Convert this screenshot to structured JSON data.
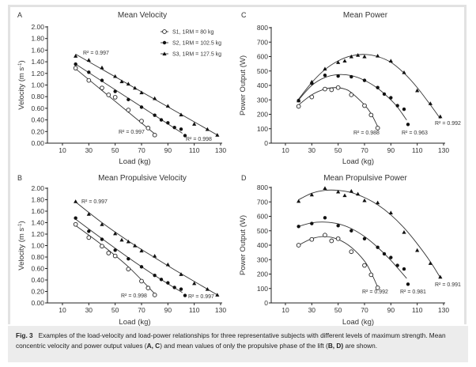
{
  "caption": {
    "label": "Fig. 3",
    "text_1": "Examples of the load-velocity and load-power relationships for three representative subjects with different levels of maximum strength. Mean concentric velocity and power output values (",
    "bold_ac": "A, C",
    "text_2": ") and mean values of only the propulsive phase of the lift (",
    "bold_bd": "B, D)",
    "text_3": " are shown."
  },
  "legend": [
    {
      "name": "S1, 1RM = 80 kg",
      "marker": "open-circle"
    },
    {
      "name": "S2, 1RM = 102.5 kg",
      "marker": "filled-circle"
    },
    {
      "name": "S3, 1RM = 127.5 kg",
      "marker": "filled-triangle"
    }
  ],
  "chart_data": [
    {
      "panel": "A",
      "type": "scatter",
      "title": "Mean Velocity",
      "xlabel": "Load (kg)",
      "ylabel": "Velocity (m s-1)",
      "xticks": [
        10,
        30,
        50,
        70,
        90,
        110,
        130
      ],
      "yticks": [
        "0.00",
        "0.20",
        "0.40",
        "0.60",
        "0.80",
        "1.00",
        "1.20",
        "1.40",
        "1.60",
        "1.80",
        "2.00"
      ],
      "xlim": [
        0,
        130
      ],
      "ylim": [
        0,
        2.0
      ],
      "fit": "linear",
      "legend_position": "top-right",
      "series": [
        {
          "name": "S1, 1RM = 80 kg",
          "marker": "open-circle",
          "r2": "R² = 0.997",
          "x": [
            20,
            30,
            40,
            45,
            50,
            60,
            70,
            75,
            80
          ],
          "y": [
            1.29,
            1.08,
            0.95,
            0.83,
            0.79,
            0.57,
            0.38,
            0.26,
            0.14
          ],
          "fit_line": [
            [
              20,
              1.28
            ],
            [
              80,
              0.16
            ]
          ]
        },
        {
          "name": "S2, 1RM = 102.5 kg",
          "marker": "filled-circle",
          "r2": "R² = 0.998",
          "x": [
            20,
            30,
            40,
            50,
            60,
            70,
            80,
            85,
            90,
            95,
            100,
            103
          ],
          "y": [
            1.36,
            1.22,
            1.08,
            0.89,
            0.75,
            0.62,
            0.48,
            0.4,
            0.35,
            0.27,
            0.24,
            0.13
          ],
          "fit_line": [
            [
              20,
              1.36
            ],
            [
              101,
              0.17
            ]
          ]
        },
        {
          "name": "S3, 1RM = 127.5 kg",
          "marker": "filled-triangle",
          "r2": "R² = 0.997",
          "x": [
            20,
            30,
            40,
            50,
            55,
            60,
            65,
            70,
            80,
            90,
            100,
            110,
            120,
            127.5
          ],
          "y": [
            1.5,
            1.43,
            1.3,
            1.15,
            1.06,
            1.02,
            0.95,
            0.87,
            0.77,
            0.64,
            0.49,
            0.33,
            0.24,
            0.14
          ],
          "fit_line": [
            [
              20,
              1.53
            ],
            [
              127.5,
              0.14
            ]
          ]
        }
      ]
    },
    {
      "panel": "C",
      "type": "scatter",
      "title": "Mean Power",
      "xlabel": "Load (kg)",
      "ylabel": "Power Output (W)",
      "xticks": [
        10,
        30,
        50,
        70,
        90,
        110,
        130
      ],
      "yticks": [
        "0",
        "100",
        "200",
        "300",
        "400",
        "500",
        "600",
        "700",
        "800"
      ],
      "xlim": [
        0,
        130
      ],
      "ylim": [
        0,
        800
      ],
      "fit": "quadratic",
      "series": [
        {
          "name": "S1, 1RM = 80 kg",
          "marker": "open-circle",
          "r2": "R² = 0.988",
          "x": [
            20,
            30,
            40,
            45,
            50,
            60,
            70,
            75,
            80
          ],
          "y": [
            255,
            320,
            375,
            370,
            385,
            335,
            260,
            195,
            105
          ],
          "fit_curve": [
            [
              20,
              265
            ],
            [
              30,
              335
            ],
            [
              40,
              375
            ],
            [
              48,
              385
            ],
            [
              55,
              375
            ],
            [
              60,
              350
            ],
            [
              70,
              265
            ],
            [
              75,
              205
            ],
            [
              80,
              115
            ]
          ]
        },
        {
          "name": "S2, 1RM = 102.5 kg",
          "marker": "filled-circle",
          "r2": "R² = 0.963",
          "x": [
            20,
            30,
            40,
            50,
            60,
            70,
            80,
            85,
            90,
            95,
            100,
            103
          ],
          "y": [
            295,
            415,
            470,
            465,
            460,
            435,
            385,
            340,
            315,
            260,
            235,
            130
          ],
          "fit_curve": [
            [
              20,
              300
            ],
            [
              30,
              400
            ],
            [
              40,
              455
            ],
            [
              50,
              475
            ],
            [
              60,
              468
            ],
            [
              70,
              435
            ],
            [
              80,
              380
            ],
            [
              90,
              300
            ],
            [
              95,
              250
            ],
            [
              102,
              160
            ]
          ]
        },
        {
          "name": "S3, 1RM = 127.5 kg",
          "marker": "filled-triangle",
          "r2": "R² = 0.992",
          "x": [
            20,
            30,
            40,
            50,
            55,
            60,
            65,
            70,
            80,
            90,
            100,
            110,
            120,
            127.5
          ],
          "y": [
            295,
            425,
            515,
            560,
            570,
            600,
            610,
            600,
            605,
            570,
            490,
            365,
            275,
            185
          ],
          "fit_curve": [
            [
              20,
              305
            ],
            [
              30,
              420
            ],
            [
              40,
              510
            ],
            [
              50,
              570
            ],
            [
              60,
              605
            ],
            [
              70,
              615
            ],
            [
              80,
              600
            ],
            [
              90,
              560
            ],
            [
              100,
              485
            ],
            [
              110,
              385
            ],
            [
              120,
              265
            ],
            [
              127.5,
              170
            ]
          ]
        }
      ]
    },
    {
      "panel": "B",
      "type": "scatter",
      "title": "Mean Propulsive Velocity",
      "xlabel": "Load (kg)",
      "ylabel": "Velocity (m s-1)",
      "xticks": [
        10,
        30,
        50,
        70,
        90,
        110,
        130
      ],
      "yticks": [
        "0.00",
        "0.20",
        "0.40",
        "0.60",
        "0.80",
        "1.00",
        "1.20",
        "1.40",
        "1.60",
        "1.80",
        "2.00"
      ],
      "xlim": [
        0,
        130
      ],
      "ylim": [
        0,
        2.0
      ],
      "fit": "curvilinear",
      "series": [
        {
          "name": "S1, 1RM = 80 kg",
          "marker": "open-circle",
          "r2": "R² = 0.998",
          "x": [
            20,
            30,
            40,
            45,
            50,
            60,
            70,
            75,
            80
          ],
          "y": [
            1.37,
            1.14,
            0.99,
            0.87,
            0.82,
            0.59,
            0.38,
            0.26,
            0.14
          ],
          "fit_curve": [
            [
              20,
              1.35
            ],
            [
              40,
              1.01
            ],
            [
              60,
              0.63
            ],
            [
              80,
              0.16
            ]
          ]
        },
        {
          "name": "S2, 1RM = 102.5 kg",
          "marker": "filled-circle",
          "r2": "R² = 0.997",
          "x": [
            20,
            30,
            40,
            50,
            60,
            70,
            80,
            85,
            90,
            95,
            100,
            103
          ],
          "y": [
            1.48,
            1.25,
            1.11,
            0.92,
            0.77,
            0.63,
            0.48,
            0.41,
            0.35,
            0.27,
            0.24,
            0.13
          ],
          "fit_curve": [
            [
              20,
              1.46
            ],
            [
              40,
              1.12
            ],
            [
              60,
              0.79
            ],
            [
              80,
              0.48
            ],
            [
              101,
              0.18
            ]
          ]
        },
        {
          "name": "S3, 1RM = 127.5 kg",
          "marker": "filled-triangle",
          "r2": "R² = 0.997",
          "x": [
            20,
            30,
            40,
            50,
            55,
            60,
            65,
            70,
            80,
            90,
            100,
            110,
            120,
            127.5
          ],
          "y": [
            1.77,
            1.55,
            1.37,
            1.21,
            1.1,
            1.07,
            1.0,
            0.91,
            0.82,
            0.67,
            0.5,
            0.34,
            0.24,
            0.14
          ],
          "fit_curve": [
            [
              20,
              1.76
            ],
            [
              40,
              1.4
            ],
            [
              60,
              1.08
            ],
            [
              80,
              0.79
            ],
            [
              100,
              0.51
            ],
            [
              127.5,
              0.14
            ]
          ]
        }
      ]
    },
    {
      "panel": "D",
      "type": "scatter",
      "title": "Mean Propulsive Power",
      "xlabel": "Load (kg)",
      "ylabel": "Power Output (W)",
      "xticks": [
        10,
        30,
        50,
        70,
        90,
        110,
        130
      ],
      "yticks": [
        "0",
        "100",
        "200",
        "300",
        "400",
        "500",
        "600",
        "700",
        "800"
      ],
      "xlim": [
        0,
        130
      ],
      "ylim": [
        0,
        800
      ],
      "fit": "quadratic",
      "series": [
        {
          "name": "S1, 1RM = 80 kg",
          "marker": "open-circle",
          "r2": "R² = 0.992",
          "x": [
            20,
            30,
            40,
            45,
            50,
            60,
            70,
            75,
            80
          ],
          "y": [
            400,
            440,
            470,
            430,
            445,
            355,
            260,
            195,
            105
          ],
          "fit_curve": [
            [
              20,
              400
            ],
            [
              30,
              445
            ],
            [
              40,
              460
            ],
            [
              50,
              440
            ],
            [
              60,
              385
            ],
            [
              70,
              290
            ],
            [
              75,
              210
            ],
            [
              80,
              110
            ]
          ]
        },
        {
          "name": "S2, 1RM = 102.5 kg",
          "marker": "filled-circle",
          "r2": "R² = 0.981",
          "x": [
            20,
            30,
            40,
            50,
            60,
            70,
            80,
            85,
            90,
            95,
            100,
            103
          ],
          "y": [
            530,
            550,
            590,
            535,
            500,
            445,
            385,
            340,
            315,
            260,
            235,
            130
          ],
          "fit_curve": [
            [
              20,
              530
            ],
            [
              30,
              555
            ],
            [
              40,
              560
            ],
            [
              50,
              548
            ],
            [
              60,
              515
            ],
            [
              70,
              460
            ],
            [
              80,
              385
            ],
            [
              90,
              295
            ],
            [
              102,
              170
            ]
          ]
        },
        {
          "name": "S3, 1RM = 127.5 kg",
          "marker": "filled-triangle",
          "r2": "R² = 0.991",
          "x": [
            20,
            30,
            40,
            50,
            55,
            60,
            65,
            70,
            80,
            90,
            100,
            110,
            120,
            127.5
          ],
          "y": [
            705,
            750,
            795,
            770,
            745,
            775,
            755,
            710,
            695,
            625,
            490,
            365,
            275,
            180
          ],
          "fit_curve": [
            [
              20,
              715
            ],
            [
              30,
              760
            ],
            [
              40,
              780
            ],
            [
              50,
              780
            ],
            [
              60,
              765
            ],
            [
              70,
              730
            ],
            [
              80,
              680
            ],
            [
              90,
              610
            ],
            [
              100,
              520
            ],
            [
              110,
              410
            ],
            [
              120,
              285
            ],
            [
              127.5,
              175
            ]
          ]
        }
      ]
    }
  ]
}
